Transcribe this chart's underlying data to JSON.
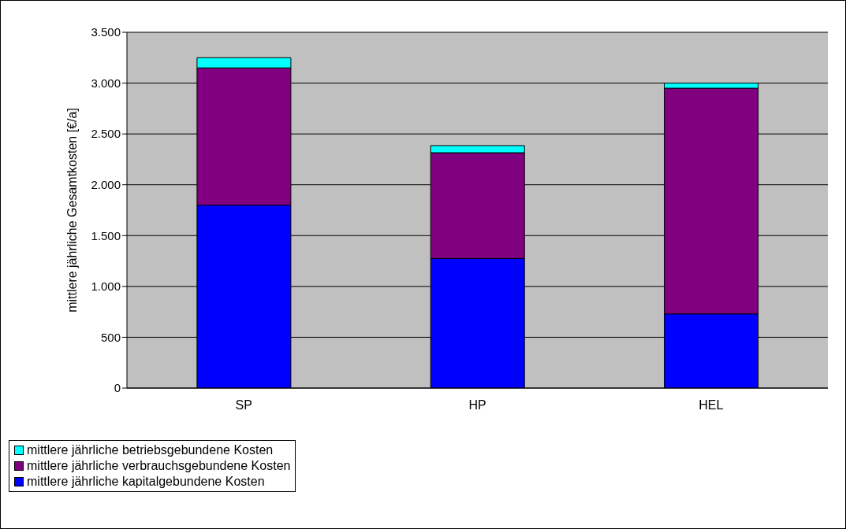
{
  "chart_data": {
    "type": "bar",
    "stacked": true,
    "ylabel": "mittlere jährliche Gesamtkosten [€/a]",
    "categories": [
      "SP",
      "HP",
      "HEL"
    ],
    "series": [
      {
        "name": "mittlere jährliche kapitalgebundene Kosten",
        "color": "#0000ff",
        "values": [
          1800,
          1275,
          730
        ]
      },
      {
        "name": "mittlere jährliche verbrauchsgebundene Kosten",
        "color": "#800080",
        "values": [
          1350,
          1040,
          2220
        ]
      },
      {
        "name": "mittlere jährliche betriebsgebundene Kosten",
        "color": "#00ffff",
        "values": [
          100,
          70,
          50
        ]
      }
    ],
    "ylim": [
      0,
      3500
    ],
    "yticks": [
      0,
      {
        "value": 500,
        "label": "500"
      },
      {
        "value": 1000,
        "label": "1.000"
      },
      {
        "value": 1500,
        "label": "1.500"
      },
      {
        "value": 2000,
        "label": "2.000"
      },
      {
        "value": 2500,
        "label": "2.500"
      },
      {
        "value": 3000,
        "label": "3.000"
      },
      {
        "value": 3500,
        "label": "3.500"
      }
    ],
    "grid": "y",
    "legend": "bottom"
  }
}
